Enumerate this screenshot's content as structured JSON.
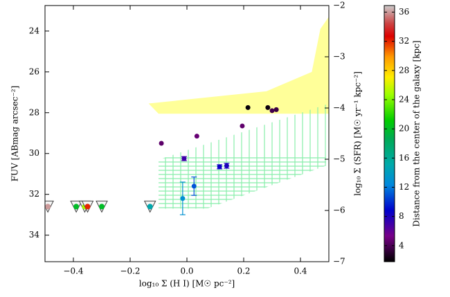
{
  "chart_data": {
    "type": "scatter",
    "xlabel": "log₁₀ Σ (H I) [M☉ pc⁻²]",
    "ylabel": "FUV [ABmag arcsec⁻²]",
    "y2label": "log₁₀ Σ (SFR) [M☉ yr⁻¹ kpc⁻²]",
    "colorbar_label": "Distance from the center of the galaxy [kpc]",
    "xlim": [
      -0.5,
      0.5
    ],
    "ylim": [
      35.3,
      22.75
    ],
    "y2lim": [
      -7,
      -2
    ],
    "clim": [
      1.8,
      36.9
    ],
    "xticks": [
      {
        "value": -0.4,
        "label": "−0.4"
      },
      {
        "value": -0.2,
        "label": "−0.2"
      },
      {
        "value": 0,
        "label": "0.0"
      },
      {
        "value": 0.2,
        "label": "0.2"
      },
      {
        "value": 0.4,
        "label": "0.4"
      }
    ],
    "yticks": [
      24,
      26,
      28,
      30,
      32,
      34
    ],
    "y2ticks": [
      {
        "value": -2,
        "label": "−2"
      },
      {
        "value": -3,
        "label": "−3"
      },
      {
        "value": -4,
        "label": "−4"
      },
      {
        "value": -5,
        "label": "−5"
      },
      {
        "value": -6,
        "label": "−6"
      },
      {
        "value": -7,
        "label": "−7"
      }
    ],
    "cticks": [
      4,
      8,
      12,
      16,
      20,
      24,
      28,
      32,
      36
    ],
    "colormap": [
      [
        0,
        "#000000"
      ],
      [
        0.1,
        "#780088"
      ],
      [
        0.2,
        "#0000cc"
      ],
      [
        0.3,
        "#0088dd"
      ],
      [
        0.38,
        "#00aaaa"
      ],
      [
        0.48,
        "#00aa55"
      ],
      [
        0.55,
        "#00cc00"
      ],
      [
        0.65,
        "#99ff00"
      ],
      [
        0.72,
        "#ffee00"
      ],
      [
        0.8,
        "#ff9900"
      ],
      [
        0.88,
        "#dd0000"
      ],
      [
        0.93,
        "#cc4444"
      ],
      [
        1,
        "#cccccc"
      ]
    ],
    "x": [
      -0.09,
      0.035,
      0.195,
      0.3,
      0.315,
      0.215,
      0.285,
      -0.01,
      0.115,
      0.14,
      0.025,
      -0.015
    ],
    "y": [
      29.5,
      29.15,
      28.65,
      27.9,
      27.85,
      27.75,
      27.75,
      30.25,
      30.65,
      30.6,
      31.6,
      32.2
    ],
    "c": [
      4.5,
      4.8,
      4.6,
      3.8,
      3.5,
      2.0,
      2.2,
      7.0,
      8.5,
      8.0,
      11.0,
      13.0
    ],
    "yerr": [
      null,
      null,
      null,
      null,
      null,
      null,
      null,
      0.1,
      0.1,
      0.12,
      0.45,
      0.8
    ],
    "upper_limits": {
      "x": [
        -0.49,
        -0.39,
        -0.36,
        -0.35,
        -0.3,
        -0.13
      ],
      "y": [
        32.6,
        32.6,
        32.6,
        32.6,
        32.6,
        32.6
      ],
      "c": [
        36,
        20,
        25,
        32,
        20,
        15
      ]
    },
    "upper_region": {
      "color": "#ffff99",
      "x": [
        -0.135,
        0.28,
        0.44,
        0.47,
        0.5,
        0.5,
        -0.1
      ],
      "y": [
        27.55,
        26.95,
        26.0,
        23.9,
        23.3,
        28.05,
        28.05
      ]
    },
    "model_region": {
      "color": "#88eeaa",
      "x": [
        -0.1,
        -0.1,
        0.07,
        0.49,
        0.49
      ],
      "y": [
        30.3,
        32.7,
        32.7,
        30.6,
        27.6
      ]
    }
  }
}
